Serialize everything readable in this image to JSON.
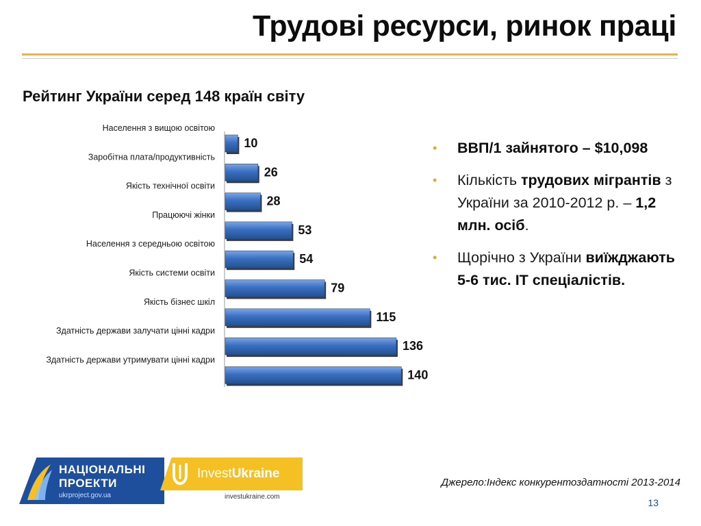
{
  "title": "Трудові ресурси, ринок праці",
  "subtitle": "Рейтинг  України серед 148 країн світу",
  "chart_data": {
    "type": "bar",
    "orientation": "horizontal",
    "categories": [
      "Населення з вищою освітою",
      "Заробітна плата/продуктивність",
      "Якість технічної освіти",
      "Працюючі жінки",
      "Населення з середньою освітою",
      "Якість системи освіти",
      "Якість бізнес шкіл",
      "Здатність держави залучати цінні кадри",
      "Здатність держави утримувати цінні кадри"
    ],
    "values": [
      10,
      26,
      28,
      53,
      54,
      79,
      115,
      136,
      140
    ],
    "xlim": [
      0,
      148
    ],
    "grid": false,
    "legend": false,
    "bar_color": "#3a6fc0"
  },
  "bullets": [
    {
      "parts": [
        {
          "text": "ВВП/1 зайнятого – $10,098",
          "bold": true
        }
      ]
    },
    {
      "parts": [
        {
          "text": "Кількість ",
          "bold": false
        },
        {
          "text": "трудових мігрантів",
          "bold": true
        },
        {
          "text": " з України за 2010-2012 р. – ",
          "bold": false
        },
        {
          "text": "1,2 млн. осіб",
          "bold": true
        },
        {
          "text": ".",
          "bold": false
        }
      ]
    },
    {
      "parts": [
        {
          "text": "Щорічно з України ",
          "bold": false
        },
        {
          "text": "виїжджають 5-6 тис. ІТ спеціалістів.",
          "bold": true
        }
      ]
    }
  ],
  "logos": {
    "np_line1": "НАЦІОНАЛЬНІ",
    "np_line2": "ПРОЕКТИ",
    "np_url": "ukrproject.gov.ua",
    "iu_invest": "Invest",
    "iu_ukraine": "Ukraine",
    "iu_url": "investukraine.com"
  },
  "source": "Джерело:Індекс конкурентоздатності 2013-2014",
  "page_number": "13",
  "colors": {
    "accent_rule": "#e2b35e",
    "bullet": "#e7a530",
    "np_blue": "#1e4f9c",
    "iu_yellow": "#f4c023"
  }
}
